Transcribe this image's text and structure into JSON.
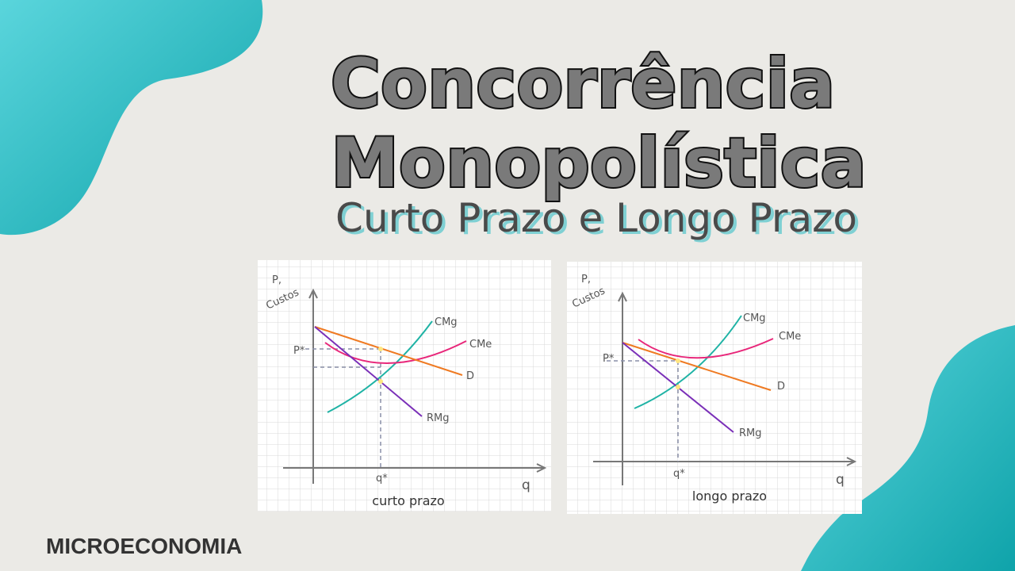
{
  "title": {
    "line1": "Concorrência",
    "line2": "Monopolística"
  },
  "subtitle": "Curto Prazo e Longo Prazo",
  "footer": "MICROECONOMIA",
  "diagrams": [
    {
      "y_axis_label": {
        "line1": "P,",
        "line2": "Custos"
      },
      "x_axis_label": "q",
      "price_label": "P*",
      "quantity_label": "q*",
      "curves": {
        "marginal_cost": "CMg",
        "average_cost": "CMe",
        "demand": "D",
        "marginal_revenue": "RMg"
      },
      "caption": "curto prazo"
    },
    {
      "y_axis_label": {
        "line1": "P,",
        "line2": "Custos"
      },
      "x_axis_label": "q",
      "price_label": "P*",
      "quantity_label": "q*",
      "curves": {
        "marginal_cost": "CMg",
        "average_cost": "CMe",
        "demand": "D",
        "marginal_revenue": "RMg"
      },
      "caption": "longo prazo"
    }
  ]
}
